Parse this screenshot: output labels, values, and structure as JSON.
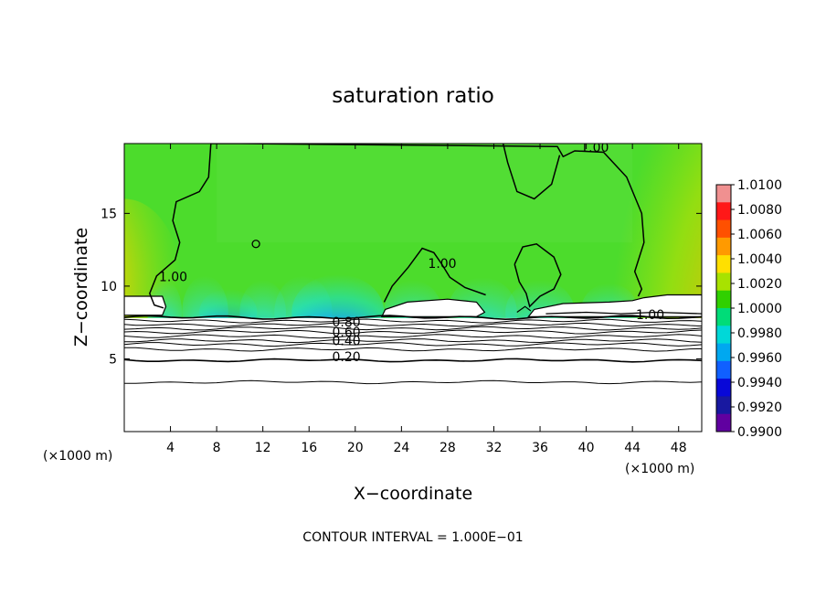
{
  "chart_data": {
    "type": "heatmap",
    "title": "saturation ratio",
    "xlabel": "X−coordinate",
    "ylabel": "Z−coordinate",
    "x_unit_left": "(×1000 m)",
    "x_unit_right": "(×1000 m)",
    "xlim": [
      0,
      50
    ],
    "ylim": [
      0,
      19.8
    ],
    "x_ticks": [
      4,
      8,
      12,
      16,
      20,
      24,
      28,
      32,
      36,
      40,
      44,
      48
    ],
    "x_tick_labels": [
      "4",
      "8",
      "12",
      "16",
      "20",
      "24",
      "28",
      "32",
      "36",
      "40",
      "44",
      "48"
    ],
    "y_ticks": [
      5,
      10,
      15
    ],
    "y_tick_labels": [
      "5",
      "10",
      "15"
    ],
    "footer": "CONTOUR INTERVAL = 1.000E−01",
    "contour_labels": [
      {
        "text": "1.00",
        "x": 39.5,
        "y": 19.3
      },
      {
        "text": "1.00",
        "x": 3.0,
        "y": 10.4
      },
      {
        "text": "1.00",
        "x": 26.3,
        "y": 11.3
      },
      {
        "text": "1.00",
        "x": 44.3,
        "y": 7.8
      },
      {
        "text": "0.80",
        "x": 18.0,
        "y": 7.3
      },
      {
        "text": "0.60",
        "x": 18.0,
        "y": 6.6
      },
      {
        "text": "0.40",
        "x": 18.0,
        "y": 6.0
      },
      {
        "text": "0.20",
        "x": 18.0,
        "y": 4.9
      }
    ],
    "colorbar": {
      "min": 0.99,
      "max": 1.01,
      "tick_labels": [
        "1.0100",
        "1.0080",
        "1.0060",
        "1.0040",
        "1.0020",
        "1.0000",
        "0.9980",
        "0.9960",
        "0.9940",
        "0.9920",
        "0.9900"
      ],
      "colors": [
        "#f09090",
        "#ff1818",
        "#ff5000",
        "#ff9a00",
        "#ffe000",
        "#a8e200",
        "#30d000",
        "#00dc78",
        "#00d8d8",
        "#00a8f0",
        "#1060ff",
        "#0808d8",
        "#1818a0",
        "#6000a0"
      ]
    },
    "field_colors": {
      "background": "#4cdc2c",
      "upper": "#56dd3a",
      "moist_left": "#ffb000",
      "moist_right": "#ff3000",
      "dry": "#1070ff",
      "light": "#30e0b0",
      "cloud": "#ffffff"
    },
    "regions": {
      "cloud_base_z": 7.8,
      "cloud_top_z": 8.2,
      "lower_contours_z": [
        7.85,
        7.6,
        7.35,
        7.1,
        6.85,
        6.55,
        6.25,
        6.0,
        5.65,
        4.9,
        3.4
      ]
    }
  }
}
